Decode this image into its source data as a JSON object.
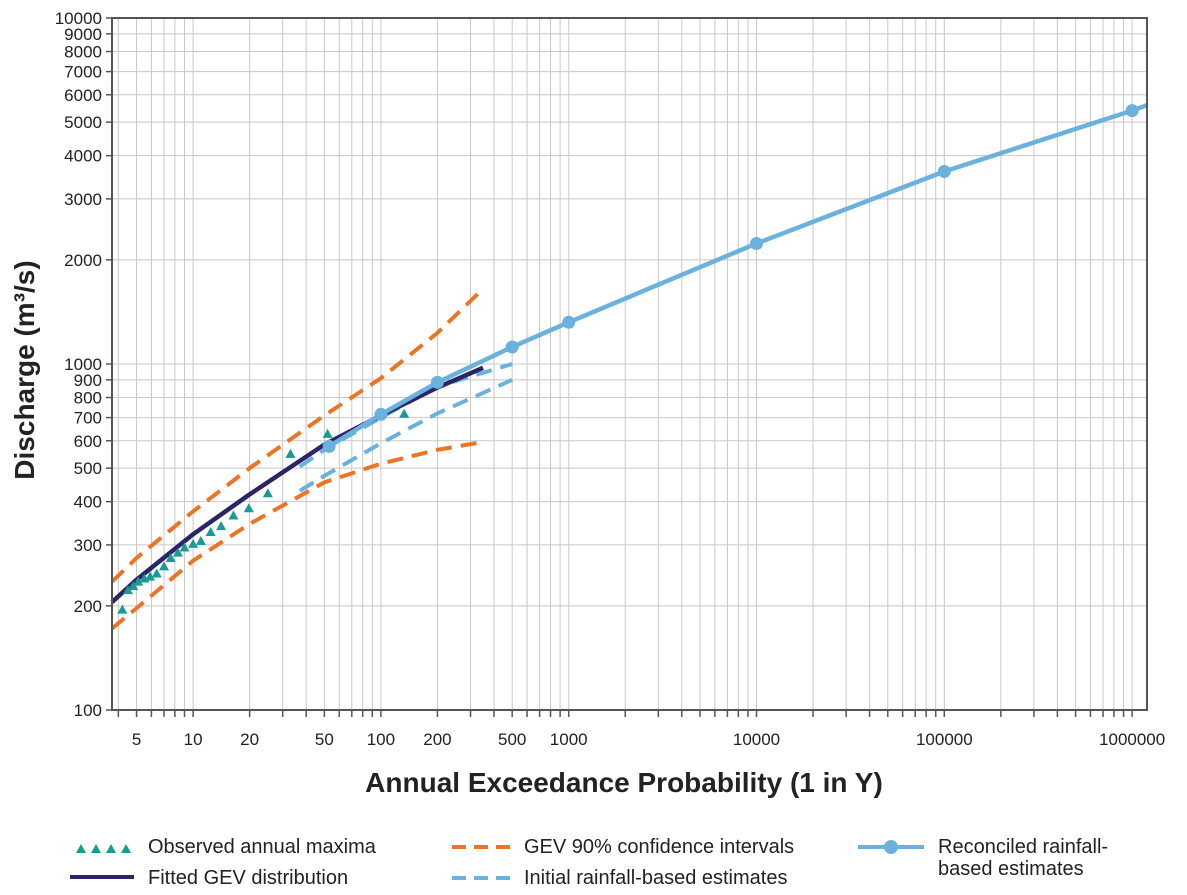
{
  "chart_data": {
    "type": "line",
    "xscale": "log",
    "yscale": "log",
    "xlim": [
      3.7,
      1200000
    ],
    "ylim": [
      100,
      10000
    ],
    "xlabel": "Annual Exceedance Probability (1 in Y)",
    "ylabel": "Discharge (m³/s)",
    "xticks": [
      5,
      10,
      20,
      50,
      100,
      200,
      500,
      1000,
      10000,
      100000,
      1000000
    ],
    "xtick_labels": [
      "5",
      "10",
      "20",
      "50",
      "100",
      "200",
      "500",
      "1000",
      "10000",
      "100000",
      "1000000"
    ],
    "yticks": [
      100,
      200,
      300,
      400,
      500,
      600,
      700,
      800,
      900,
      1000,
      2000,
      3000,
      4000,
      5000,
      6000,
      7000,
      8000,
      9000,
      10000
    ],
    "ytick_labels": [
      "100",
      "200",
      "300",
      "400",
      "500",
      "600",
      "700",
      "800",
      "900",
      "1000",
      "2000",
      "3000",
      "4000",
      "5000",
      "6000",
      "7000",
      "8000",
      "9000",
      "10000"
    ],
    "grid": true,
    "legend_position": "bottom",
    "series": [
      {
        "name": "Observed annual maxima",
        "style": "triangles",
        "color": "#1a9a93",
        "x": [
          4.2,
          4.5,
          4.8,
          5.1,
          5.5,
          5.9,
          6.4,
          7.0,
          7.6,
          8.3,
          9.0,
          10.0,
          11.0,
          12.4,
          14.1,
          16.4,
          19.8,
          25.0,
          33.0,
          52.0,
          133.0
        ],
        "y": [
          195,
          222,
          228,
          235,
          240,
          243,
          248,
          260,
          275,
          285,
          295,
          302,
          308,
          327,
          340,
          365,
          383,
          423,
          550,
          628,
          718
        ]
      },
      {
        "name": "Fitted GEV distribution",
        "style": "solid",
        "color": "#2a2566",
        "x": [
          3.7,
          5,
          10,
          20,
          50,
          100,
          200,
          350
        ],
        "y": [
          205,
          238,
          322,
          420,
          585,
          710,
          855,
          975
        ]
      },
      {
        "name": "GEV 90% confidence intervals",
        "style": "dashed",
        "color": "#ec7424",
        "bounds": [
          {
            "x": [
              3.7,
              5,
              10,
              20,
              50,
              100,
              200,
              350
            ],
            "y": [
              235,
              275,
              375,
              500,
              710,
              910,
              1230,
              1650
            ]
          },
          {
            "x": [
              3.7,
              5,
              10,
              20,
              50,
              100,
              200,
              350
            ],
            "y": [
              172,
              197,
              270,
              345,
              455,
              515,
              565,
              595
            ]
          }
        ]
      },
      {
        "name": "Initial rainfall-based estimates",
        "style": "dashed",
        "color": "#6ab1dd",
        "bounds": [
          {
            "x": [
              37,
              50,
              100,
              200,
              500
            ],
            "y": [
              505,
              565,
              700,
              860,
              1000
            ]
          },
          {
            "x": [
              37,
              50,
              100,
              200,
              500
            ],
            "y": [
              430,
              475,
              590,
              720,
              900
            ]
          }
        ]
      },
      {
        "name": "Reconciled rainfall-based estimates",
        "style": "solid-markers",
        "color": "#6ab1dd",
        "x": [
          53,
          100,
          200,
          500,
          1000,
          10000,
          100000,
          1000000
        ],
        "y": [
          578,
          715,
          885,
          1120,
          1320,
          2230,
          3600,
          5400
        ]
      }
    ]
  },
  "legend": {
    "observed": "Observed annual maxima",
    "fitted": "Fitted GEV distribution",
    "gev_ci": "GEV 90% confidence intervals",
    "initial": "Initial rainfall-based estimates",
    "reconciled_line1": "Reconciled rainfall-",
    "reconciled_line2": "based estimates"
  },
  "colors": {
    "observed": "#1a9a93",
    "fitted": "#2a2566",
    "ci": "#ec7424",
    "rainfall": "#6ab1dd",
    "grid": "#c8c8c8",
    "axis": "#555555"
  }
}
